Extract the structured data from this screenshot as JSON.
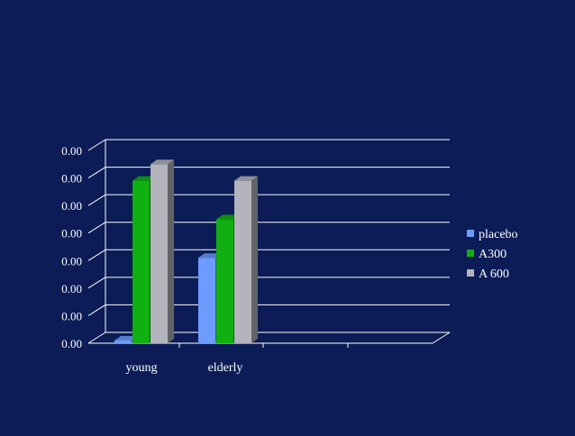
{
  "chart_data": {
    "type": "bar",
    "title": "",
    "xlabel": "",
    "ylabel": "",
    "categories": [
      "young",
      "elderly"
    ],
    "y_tick_labels": [
      "0.00",
      "0.00",
      "0.00",
      "0.00",
      "0.00",
      "0.00",
      "0.00",
      "0.00"
    ],
    "ylim": [
      0,
      7
    ],
    "grid": true,
    "legend_position": "right",
    "series": [
      {
        "name": "placebo",
        "color": "#6c9cff",
        "values": [
          0.1,
          3.1
        ]
      },
      {
        "name": "A300",
        "color": "#0fb010",
        "values": [
          5.9,
          4.5
        ]
      },
      {
        "name": "A 600",
        "color": "#b4b4bc",
        "values": [
          6.5,
          5.9
        ]
      }
    ]
  },
  "colors": {
    "background": "#0b1c56",
    "text": "#ffffff",
    "gridline": "#ffffff"
  }
}
